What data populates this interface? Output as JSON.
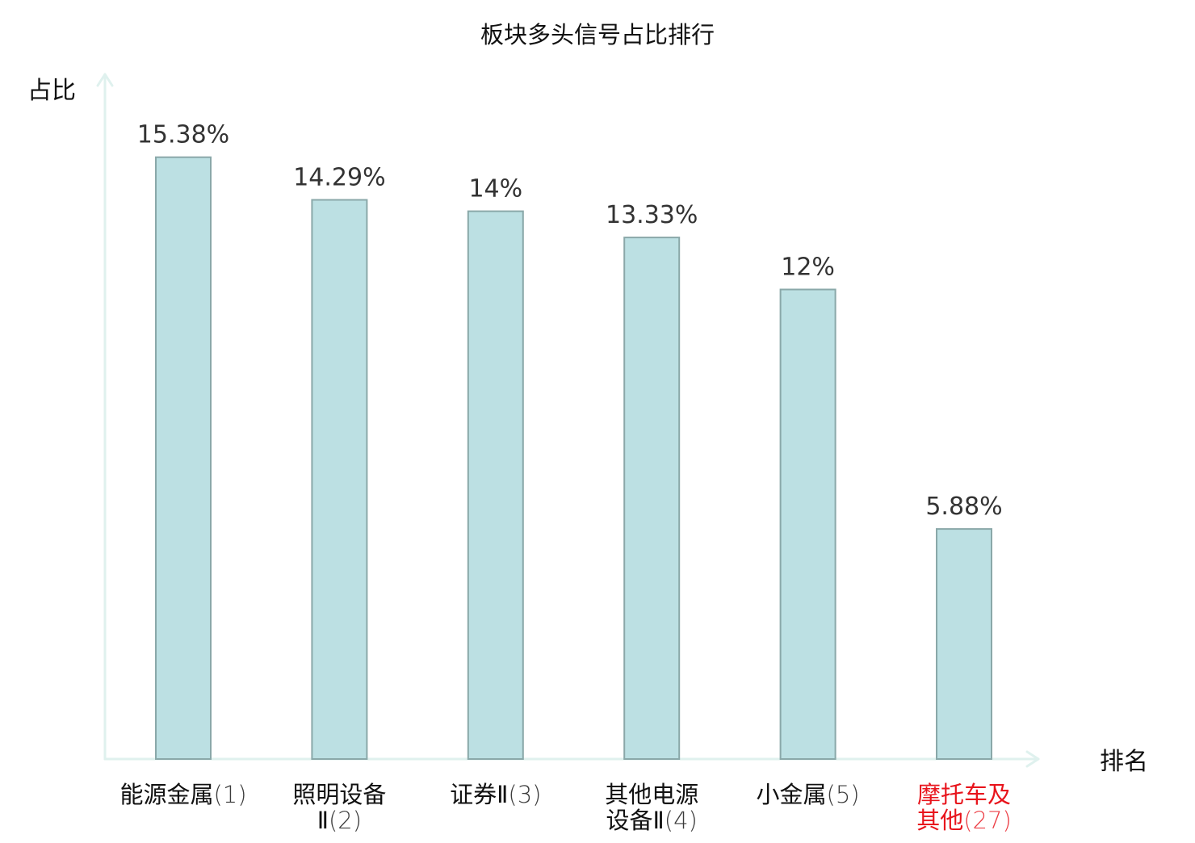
{
  "chart_data": {
    "type": "bar",
    "title": "板块多头信号占比排行",
    "xlabel": "排名",
    "ylabel": "占比",
    "ylim": [
      0,
      17.5
    ],
    "grid": false,
    "categories": [
      {
        "name": "能源金属",
        "rank": "(1)"
      },
      {
        "name": "照明设备Ⅱ",
        "rank": "(2)"
      },
      {
        "name": "证券Ⅱ",
        "rank": "(3)"
      },
      {
        "name": "其他电源设备Ⅱ",
        "rank": "(4)"
      },
      {
        "name": "小金属",
        "rank": "(5)"
      },
      {
        "name": "摩托车及其他",
        "rank": "(27)"
      }
    ],
    "values": [
      15.38,
      14.29,
      14,
      13.33,
      12,
      5.88
    ],
    "value_labels": [
      "15.38%",
      "14.29%",
      "14%",
      "13.33%",
      "12%",
      "5.88%"
    ],
    "highlight_index": 5,
    "colors": {
      "bar_fill": "#bce0e3",
      "bar_stroke": "#8aa8a9",
      "axis": "#dff1ee",
      "label_text": "#333333",
      "category_text": "#111111",
      "highlight_text": "#e8141c"
    }
  }
}
